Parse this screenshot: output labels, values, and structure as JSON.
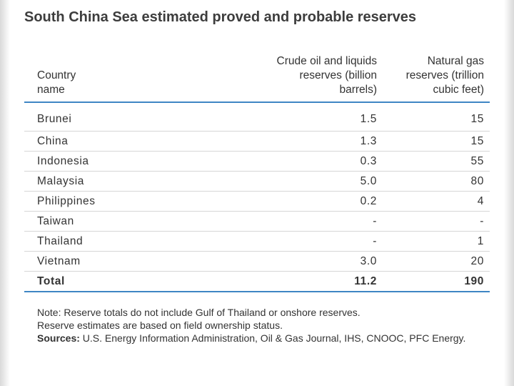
{
  "title": "South China Sea estimated proved and probable reserves",
  "table": {
    "headers": {
      "country": [
        "Country",
        "name"
      ],
      "oil": [
        "Crude oil and liquids",
        "reserves (billion",
        "barrels)"
      ],
      "gas": [
        "Natural gas",
        "reserves (trillion",
        "cubic feet)"
      ]
    },
    "rows": [
      {
        "country": "Brunei",
        "oil": "1.5",
        "gas": "15"
      },
      {
        "country": "China",
        "oil": "1.3",
        "gas": "15"
      },
      {
        "country": "Indonesia",
        "oil": "0.3",
        "gas": "55"
      },
      {
        "country": "Malaysia",
        "oil": "5.0",
        "gas": "80"
      },
      {
        "country": "Philippines",
        "oil": "0.2",
        "gas": "4"
      },
      {
        "country": "Taiwan",
        "oil": "-",
        "gas": "-"
      },
      {
        "country": "Thailand",
        "oil": "-",
        "gas": "1"
      },
      {
        "country": "Vietnam",
        "oil": "3.0",
        "gas": "20"
      }
    ],
    "total": {
      "country": "Total",
      "oil": "11.2",
      "gas": "190"
    }
  },
  "notes": {
    "note1": "Note: Reserve totals do not include Gulf of Thailand or onshore reserves.",
    "note2": "Reserve estimates are based on field ownership status.",
    "sources_label": "Sources:",
    "sources_text": " U.S. Energy Information Administration, Oil & Gas Journal, IHS, CNOOC, PFC Energy."
  },
  "colors": {
    "rule_accent": "#3f86c4",
    "row_divider": "#d6d6d6",
    "title_text": "#3d3d3d"
  }
}
